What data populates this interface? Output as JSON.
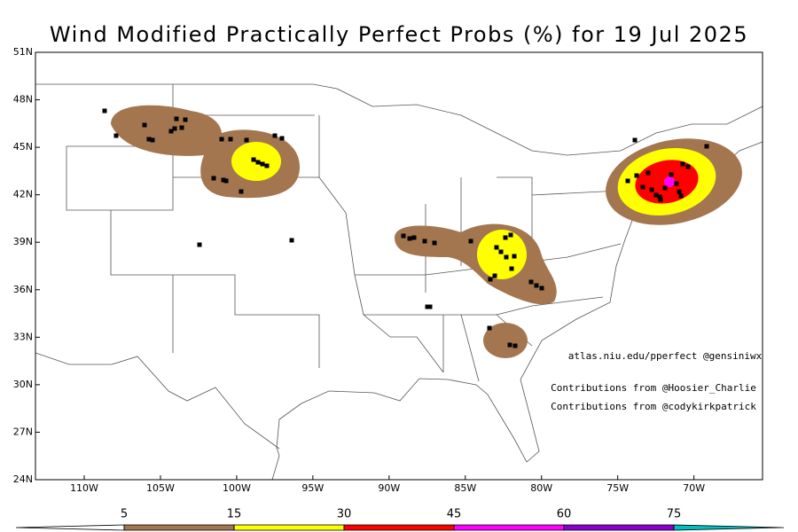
{
  "map": {
    "title": "Wind Modified Practically Perfect Probs (%) for 19 Jul 2025",
    "xlim": [
      -113.2,
      -65.5
    ],
    "ylim": [
      24,
      51
    ],
    "xticks": [
      {
        "value": -110,
        "label": "110W"
      },
      {
        "value": -105,
        "label": "105W"
      },
      {
        "value": -100,
        "label": "100W"
      },
      {
        "value": -95,
        "label": "95W"
      },
      {
        "value": -90,
        "label": "90W"
      },
      {
        "value": -85,
        "label": "85W"
      },
      {
        "value": -80,
        "label": "80W"
      },
      {
        "value": -75,
        "label": "75W"
      },
      {
        "value": -70,
        "label": "70W"
      }
    ],
    "yticks": [
      {
        "value": 24,
        "label": "24N"
      },
      {
        "value": 27,
        "label": "27N"
      },
      {
        "value": 30,
        "label": "30N"
      },
      {
        "value": 33,
        "label": "33N"
      },
      {
        "value": 36,
        "label": "36N"
      },
      {
        "value": 39,
        "label": "39N"
      },
      {
        "value": 42,
        "label": "42N"
      },
      {
        "value": 45,
        "label": "45N"
      },
      {
        "value": 48,
        "label": "48N"
      },
      {
        "value": 51,
        "label": "51N"
      }
    ]
  },
  "annotations": [
    "atlas.niu.edu/pperfect @gensiniwx",
    "Contributions from @Hoosier_Charlie",
    "Contributions from @codykirkpatrick"
  ],
  "colorbar": {
    "levels": [
      5,
      15,
      30,
      45,
      60,
      75
    ],
    "colors": [
      "#ffffff",
      "#a47650",
      "#ffff00",
      "#ff0000",
      "#ff00ff",
      "#8a00d0",
      "#00c0c0"
    ]
  }
}
